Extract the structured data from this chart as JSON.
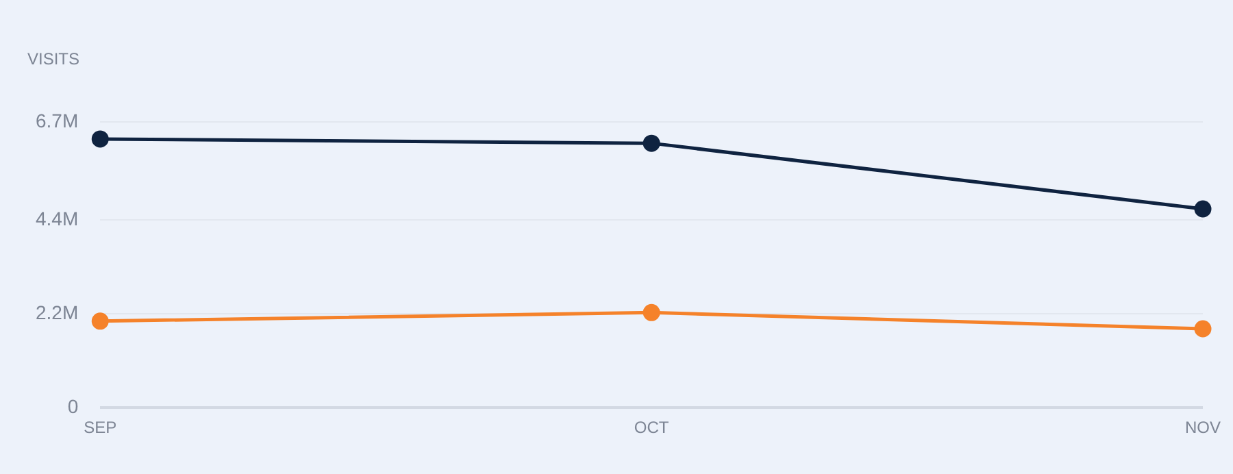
{
  "chart_data": {
    "type": "line",
    "ylabel": "VISITS",
    "categories": [
      "SEP",
      "OCT",
      "NOV"
    ],
    "series": [
      {
        "color": "#0f2340",
        "values": [
          6.3,
          6.2,
          4.66
        ]
      },
      {
        "color": "#f5822a",
        "values": [
          2.03,
          2.23,
          1.85
        ]
      }
    ],
    "ylim": [
      0,
      6.7
    ],
    "yticks": [
      0,
      {
        "value": 2.2,
        "label": "2.2M"
      },
      {
        "value": 4.4,
        "label": "4.4M"
      },
      {
        "value": 6.7,
        "label": "6.7M"
      }
    ],
    "grid": "y",
    "legend": false,
    "marker": "circle",
    "line_style": "solid"
  }
}
